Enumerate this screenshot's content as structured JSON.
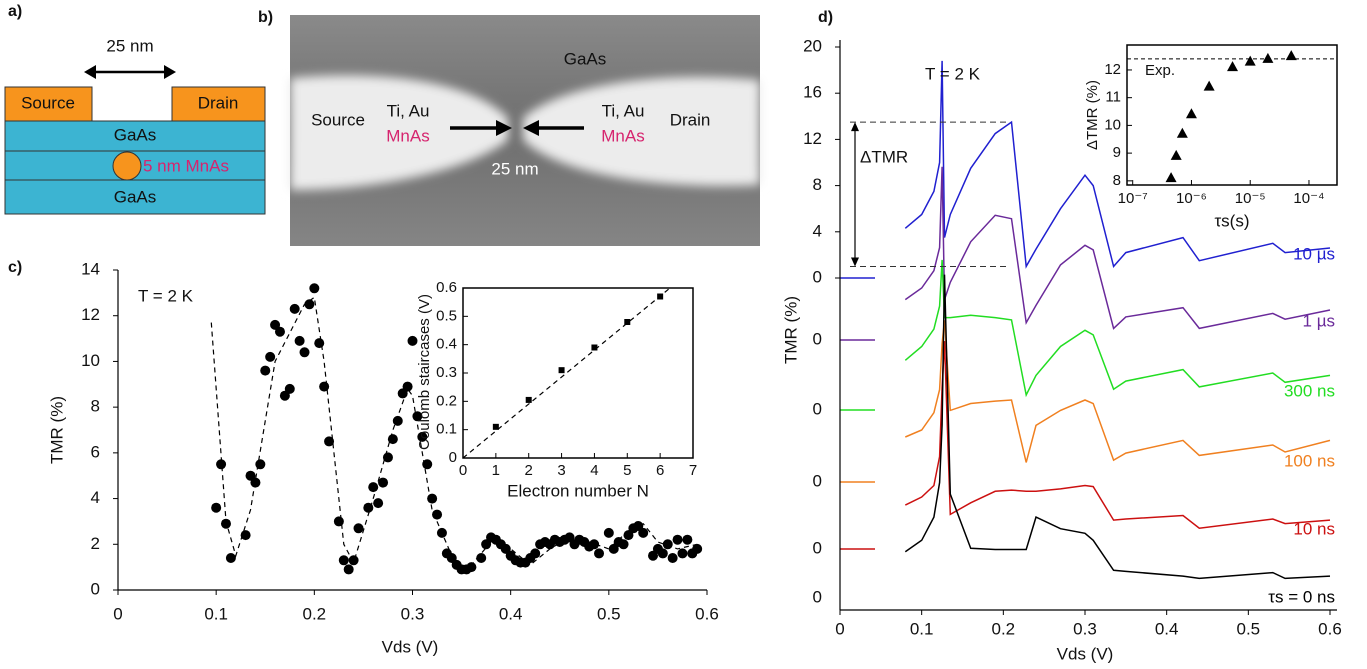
{
  "figure": {
    "panel_labels": [
      "a)",
      "b)",
      "c)",
      "d)"
    ]
  },
  "schematic": {
    "gap_label": "25 nm",
    "source": "Source",
    "drain": "Drain",
    "top_layer": "GaAs",
    "dot_label": "5 nm MnAs",
    "bottom_layer": "GaAs"
  },
  "micrograph": {
    "substrate": "GaAs",
    "source": "Source",
    "left_metal": "Ti, Au",
    "left_film": "MnAs",
    "right_metal": "Ti, Au",
    "right_film": "MnAs",
    "drain": "Drain",
    "gap_label": "25 nm"
  },
  "chart_data": [
    {
      "type": "scatter",
      "annotation": "T = 2 K",
      "x_label": "Vds (V)",
      "y_label": "TMR (%)",
      "xlim": [
        0,
        0.6
      ],
      "ylim": [
        0,
        14
      ],
      "xticks": [
        0,
        0.1,
        0.2,
        0.3,
        0.4,
        0.5,
        0.6
      ],
      "yticks": [
        0,
        2,
        4,
        6,
        8,
        10,
        12,
        14
      ],
      "series": [
        {
          "style": "markers",
          "color": "#000000",
          "x": [
            0.1,
            0.105,
            0.11,
            0.115,
            0.13,
            0.135,
            0.14,
            0.145,
            0.15,
            0.155,
            0.16,
            0.165,
            0.17,
            0.175,
            0.18,
            0.185,
            0.19,
            0.195,
            0.2,
            0.205,
            0.21,
            0.215,
            0.225,
            0.23,
            0.235,
            0.24,
            0.245,
            0.255,
            0.26,
            0.265,
            0.27,
            0.275,
            0.28,
            0.285,
            0.29,
            0.295,
            0.3,
            0.305,
            0.31,
            0.315,
            0.32,
            0.325,
            0.33,
            0.335,
            0.34,
            0.345,
            0.35,
            0.355,
            0.36,
            0.37,
            0.375,
            0.38,
            0.385,
            0.39,
            0.395,
            0.4,
            0.405,
            0.41,
            0.415,
            0.42,
            0.425,
            0.43,
            0.435,
            0.44,
            0.445,
            0.45,
            0.455,
            0.46,
            0.465,
            0.47,
            0.475,
            0.48,
            0.485,
            0.49,
            0.5,
            0.505,
            0.51,
            0.515,
            0.52,
            0.525,
            0.53,
            0.535,
            0.545,
            0.55,
            0.555,
            0.56,
            0.565,
            0.57,
            0.575,
            0.58,
            0.585,
            0.59
          ],
          "values": [
            3.6,
            5.5,
            2.9,
            1.4,
            2.4,
            5.0,
            4.7,
            5.5,
            9.6,
            10.2,
            11.6,
            11.3,
            8.5,
            8.8,
            12.3,
            10.9,
            10.4,
            12.5,
            13.2,
            10.8,
            8.9,
            6.5,
            3.0,
            1.3,
            0.9,
            1.3,
            2.7,
            3.6,
            4.5,
            3.8,
            4.7,
            5.8,
            6.6,
            7.4,
            8.6,
            8.9,
            10.9,
            7.6,
            6.7,
            5.5,
            4.0,
            3.3,
            2.5,
            1.6,
            1.4,
            1.1,
            0.9,
            0.9,
            1.0,
            1.4,
            2.0,
            2.3,
            2.2,
            2.0,
            1.8,
            1.5,
            1.3,
            1.2,
            1.2,
            1.4,
            1.6,
            2.0,
            2.1,
            2.0,
            2.2,
            2.1,
            2.2,
            2.3,
            2.0,
            2.2,
            2.1,
            1.9,
            2.0,
            1.6,
            2.5,
            1.8,
            2.1,
            2.0,
            2.4,
            2.7,
            2.8,
            2.5,
            1.5,
            1.8,
            1.6,
            2.0,
            1.4,
            2.2,
            1.6,
            2.2,
            1.6,
            1.8
          ]
        },
        {
          "style": "dashed",
          "color": "#000000",
          "x": [
            0.095,
            0.11,
            0.12,
            0.135,
            0.16,
            0.19,
            0.2,
            0.21,
            0.23,
            0.24,
            0.26,
            0.28,
            0.295,
            0.3,
            0.32,
            0.345,
            0.36,
            0.38,
            0.4,
            0.42,
            0.44,
            0.46,
            0.48,
            0.5,
            0.52,
            0.535,
            0.55,
            0.57,
            0.59
          ],
          "values": [
            11.7,
            3,
            1.5,
            3.5,
            10,
            12.5,
            12.8,
            10,
            2,
            1.2,
            4,
            7,
            8.8,
            8.5,
            3.5,
            1,
            1.1,
            2.1,
            1.8,
            1.1,
            1.8,
            2.3,
            2.1,
            1.8,
            2.6,
            2.9,
            2.1,
            1.8,
            2.0
          ]
        }
      ]
    },
    {
      "type": "scatter",
      "x_label": "Electron number N",
      "y_label": "Coulomb staircases (V)",
      "xlim": [
        0,
        7
      ],
      "ylim": [
        0,
        0.6
      ],
      "xticks": [
        0,
        1,
        2,
        3,
        4,
        5,
        6,
        7
      ],
      "yticks": [
        0,
        0.1,
        0.2,
        0.3,
        0.4,
        0.5,
        0.6
      ],
      "series": [
        {
          "style": "squares",
          "color": "#000000",
          "x": [
            1,
            2,
            3,
            4,
            5,
            6
          ],
          "values": [
            0.11,
            0.205,
            0.31,
            0.39,
            0.48,
            0.57
          ]
        },
        {
          "style": "dashed",
          "color": "#000000",
          "x": [
            0,
            6.3
          ],
          "values": [
            0,
            0.6
          ]
        }
      ]
    },
    {
      "type": "line",
      "annotation": "T = 2 K",
      "delta_label": "ΔTMR",
      "x_label": "Vds (V)",
      "y_label": "TMR (%)",
      "xlim": [
        0,
        0.6
      ],
      "ylim": [
        0,
        20
      ],
      "xticks": [
        0,
        0.1,
        0.2,
        0.3,
        0.4,
        0.5,
        0.6
      ],
      "yticks": [
        0,
        4,
        8,
        12,
        16,
        20
      ],
      "x": [
        0.08,
        0.1,
        0.115,
        0.122,
        0.125,
        0.128,
        0.135,
        0.16,
        0.19,
        0.21,
        0.228,
        0.24,
        0.27,
        0.3,
        0.31,
        0.335,
        0.35,
        0.42,
        0.44,
        0.53,
        0.545,
        0.6
      ],
      "series": [
        {
          "name": "10 µs",
          "color": "#2020d0",
          "values": [
            4.3,
            5.5,
            7.5,
            10,
            18.8,
            3.5,
            5.5,
            9.5,
            12.5,
            13.5,
            1.0,
            2.5,
            6,
            8.9,
            8.0,
            1.0,
            2.2,
            3.5,
            1.5,
            3.0,
            2.2,
            2.6
          ]
        },
        {
          "name": "1 µs",
          "color": "#6a2a9a",
          "baseline_tick": 0,
          "values": [
            3.5,
            4.5,
            6,
            8,
            15,
            3.5,
            5,
            8.5,
            10.8,
            10.5,
            1.5,
            3,
            6.5,
            8.2,
            7.8,
            1,
            2,
            2.8,
            1,
            2.3,
            1.8,
            2.6
          ]
        },
        {
          "name": "300 ns",
          "color": "#22dd22",
          "baseline_tick": 0,
          "values": [
            4.3,
            5.5,
            7,
            9,
            13,
            8,
            8,
            8.2,
            8,
            7.8,
            1.3,
            3,
            5.5,
            6.9,
            6.5,
            1.8,
            2.5,
            3.5,
            2,
            3.2,
            2.4,
            3
          ]
        },
        {
          "name": "100 ns",
          "color": "#f08020",
          "baseline_tick": 0,
          "values": [
            3.9,
            4.5,
            6,
            8,
            12,
            14,
            6.2,
            6.8,
            7,
            7.1,
            1.7,
            4.9,
            6.2,
            7.1,
            6.8,
            1.9,
            2.5,
            3.6,
            2.3,
            3.2,
            2.6,
            3.6
          ]
        },
        {
          "name": "10 ns",
          "color": "#cc1010",
          "baseline_tick": 0,
          "values": [
            3.8,
            4.5,
            5.5,
            8,
            14,
            18,
            3,
            4,
            5,
            5.1,
            5,
            5,
            5.2,
            5.5,
            5.4,
            2.5,
            2.6,
            2.9,
            1.8,
            2.6,
            2.2,
            2.5
          ]
        },
        {
          "name": "τs = 0 ns",
          "color": "#000000",
          "baseline_tick": 0,
          "values": [
            4,
            5,
            7,
            10,
            15,
            28,
            9,
            4.3,
            4.2,
            4.2,
            4.2,
            7,
            6,
            5.6,
            5,
            2.4,
            2.3,
            1.9,
            1.7,
            2.2,
            1.7,
            1.9
          ]
        }
      ]
    },
    {
      "type": "scatter",
      "log_x": true,
      "x_label": "τs(s)",
      "y_label": "ΔTMR (%)",
      "xlim": [
        8e-08,
        0.0003
      ],
      "ylim": [
        7.85,
        12.9
      ],
      "xticks": [
        {
          "value": 1e-07,
          "label": "10⁻⁷"
        },
        {
          "value": 1e-06,
          "label": "10⁻⁶"
        },
        {
          "value": 1e-05,
          "label": "10⁻⁵"
        },
        {
          "value": 0.0001,
          "label": "10⁻⁴"
        }
      ],
      "yticks": [
        8,
        9,
        10,
        11,
        12
      ],
      "reference_line": {
        "value": 12.4,
        "label": "Exp."
      },
      "series": [
        {
          "style": "triangles",
          "color": "#000000",
          "x": [
            4.5e-07,
            5.5e-07,
            7e-07,
            1e-06,
            2e-06,
            5e-06,
            1e-05,
            2e-05,
            5e-05
          ],
          "values": [
            8.1,
            8.9,
            9.7,
            10.4,
            11.4,
            12.1,
            12.3,
            12.4,
            12.5
          ]
        }
      ]
    }
  ]
}
